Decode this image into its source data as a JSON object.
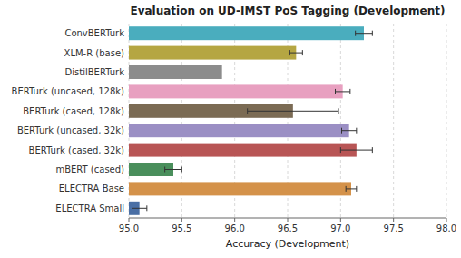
{
  "chart_data": {
    "type": "bar",
    "orientation": "horizontal",
    "title": "Evaluation on UD-IMST PoS Tagging (Development)",
    "xlabel": "Accuracy (Development)",
    "categories": [
      "ELECTRA Small",
      "ELECTRA Base",
      "mBERT (cased)",
      "BERTurk (cased, 32k)",
      "BERTurk (uncased, 32k)",
      "BERTurk (cased, 128k)",
      "BERTurk (uncased, 128k)",
      "DistilBERTurk",
      "XLM-R (base)",
      "ConvBERTurk"
    ],
    "values": [
      95.1,
      97.1,
      95.42,
      97.15,
      97.08,
      96.55,
      97.02,
      95.88,
      96.58,
      97.22
    ],
    "errors": [
      0.07,
      0.05,
      0.08,
      0.15,
      0.07,
      0.43,
      0.07,
      0.0,
      0.06,
      0.08
    ],
    "colors": [
      "#4a6fa5",
      "#d4924a",
      "#4a8f5c",
      "#b85555",
      "#9b8fc4",
      "#7b6b54",
      "#e8a0c0",
      "#8c8c8c",
      "#b5a642",
      "#4aadbe"
    ],
    "xlim": [
      95.0,
      98.0
    ],
    "xticks": [
      {
        "value": 95.0,
        "label": "95.0"
      },
      95.5,
      {
        "value": 96.0,
        "label": "96.0"
      },
      96.5,
      {
        "value": 97.0,
        "label": "97.0"
      },
      97.5,
      {
        "value": 98.0,
        "label": "98.0"
      }
    ],
    "grid": true
  }
}
